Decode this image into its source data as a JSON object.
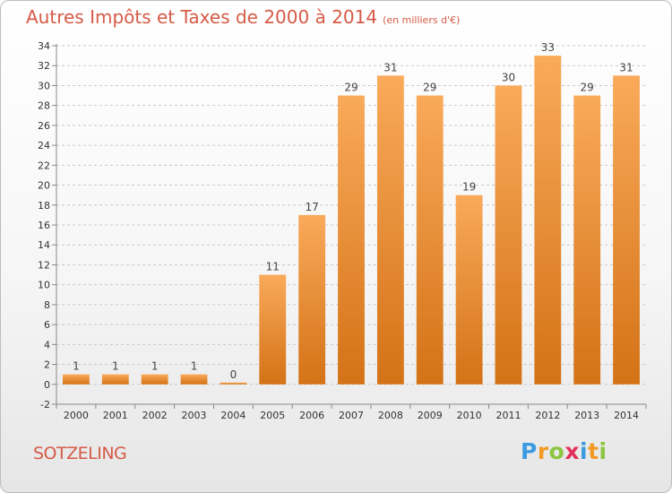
{
  "header": {
    "title": "Autres Impôts et Taxes de 2000 à 2014",
    "subtitle": "(en milliers d'€)"
  },
  "footer": {
    "town": "SOTZELING",
    "logo_letters": [
      "P",
      "r",
      "o",
      "x",
      "i",
      "t",
      "i"
    ],
    "logo_colors": [
      "#3c9be0",
      "#f19a25",
      "#8cc63f",
      "#e2315a",
      "#3c9be0",
      "#f19a25",
      "#8cc63f"
    ]
  },
  "colors": {
    "bar_top": "#f9aa5a",
    "bar_bottom": "#d47216",
    "text_accent": "#d65a46"
  },
  "chart_data": {
    "type": "bar",
    "categories": [
      "2000",
      "2001",
      "2002",
      "2003",
      "2004",
      "2005",
      "2006",
      "2007",
      "2008",
      "2009",
      "2010",
      "2011",
      "2012",
      "2013",
      "2014"
    ],
    "values": [
      1,
      1,
      1,
      1,
      0,
      11,
      17,
      29,
      31,
      29,
      19,
      30,
      33,
      29,
      31
    ],
    "ylim": [
      -2,
      34
    ],
    "yticks": [
      -2,
      0,
      2,
      4,
      6,
      8,
      10,
      12,
      14,
      16,
      18,
      20,
      22,
      24,
      26,
      28,
      30,
      32,
      34
    ],
    "grid": true,
    "xlabel": "",
    "ylabel": ""
  }
}
